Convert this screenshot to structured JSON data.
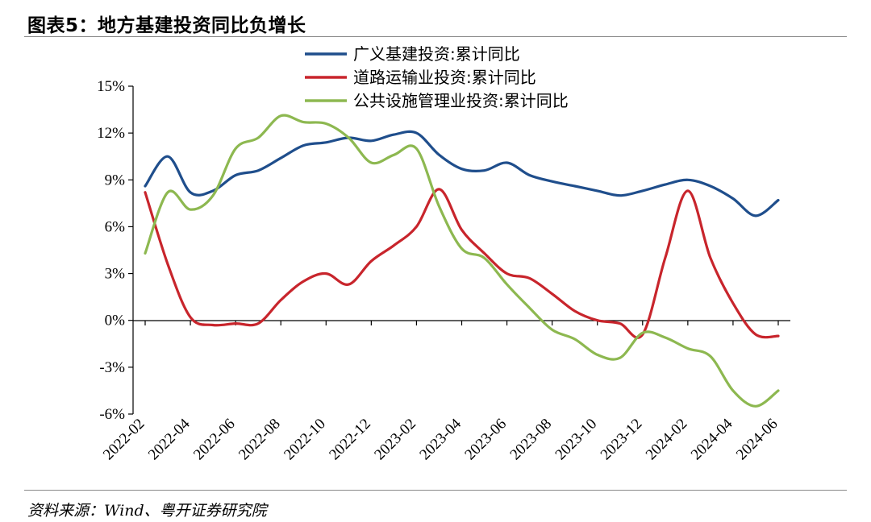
{
  "figure": {
    "title": "图表5：地方基建投资同比负增长",
    "source": "资料来源：Wind、粤开证券研究院"
  },
  "chart_data": {
    "type": "line",
    "title": "图表5：地方基建投资同比负增长",
    "xlabel": "",
    "ylabel": "",
    "ylim": [
      -6,
      15
    ],
    "yticks": [
      -6,
      -3,
      0,
      3,
      6,
      9,
      12,
      15
    ],
    "ytick_labels": [
      "-6%",
      "-3%",
      "0%",
      "3%",
      "6%",
      "9%",
      "12%",
      "15%"
    ],
    "xtick_labels": [
      "2022-02",
      "2022-04",
      "2022-06",
      "2022-08",
      "2022-10",
      "2022-12",
      "2023-02",
      "2023-04",
      "2023-06",
      "2023-08",
      "2023-10",
      "2023-12",
      "2024-02",
      "2024-04",
      "2024-06"
    ],
    "x": [
      "2022-02",
      "2022-03",
      "2022-04",
      "2022-05",
      "2022-06",
      "2022-07",
      "2022-08",
      "2022-09",
      "2022-10",
      "2022-11",
      "2022-12",
      "2023-01",
      "2023-02",
      "2023-03",
      "2023-04",
      "2023-05",
      "2023-06",
      "2023-07",
      "2023-08",
      "2023-09",
      "2023-10",
      "2023-11",
      "2023-12",
      "2024-01",
      "2024-02",
      "2024-03",
      "2024-04",
      "2024-05",
      "2024-06"
    ],
    "legend_position": "top",
    "series": [
      {
        "name": "广义基建投资:累计同比",
        "color": "#1F4E8C",
        "values": [
          8.6,
          10.5,
          8.2,
          8.3,
          9.3,
          9.6,
          10.4,
          11.2,
          11.4,
          11.7,
          11.5,
          11.9,
          12.0,
          10.6,
          9.7,
          9.6,
          10.1,
          9.3,
          8.9,
          8.6,
          8.3,
          8.0,
          8.3,
          8.7,
          9.0,
          8.6,
          7.8,
          6.7,
          7.7
        ]
      },
      {
        "name": "道路运输业投资:累计同比",
        "color": "#C8252C",
        "values": [
          8.2,
          3.6,
          0.2,
          -0.3,
          -0.2,
          -0.2,
          1.3,
          2.5,
          3.0,
          2.3,
          3.8,
          4.8,
          6.0,
          8.4,
          5.8,
          4.3,
          3.0,
          2.7,
          1.7,
          0.6,
          0.0,
          -0.2,
          -0.9,
          4.0,
          8.3,
          4.0,
          1.1,
          -0.9,
          -1.0
        ]
      },
      {
        "name": "公共设施管理业投资:累计同比",
        "color": "#8DB850",
        "values": [
          4.3,
          8.2,
          7.1,
          8.0,
          11.0,
          11.7,
          13.1,
          12.7,
          12.6,
          11.7,
          10.1,
          10.6,
          11.0,
          7.3,
          4.6,
          4.0,
          2.3,
          0.8,
          -0.6,
          -1.2,
          -2.2,
          -2.4,
          -0.8,
          -1.1,
          -1.8,
          -2.3,
          -4.5,
          -5.5,
          -4.5
        ]
      }
    ]
  }
}
